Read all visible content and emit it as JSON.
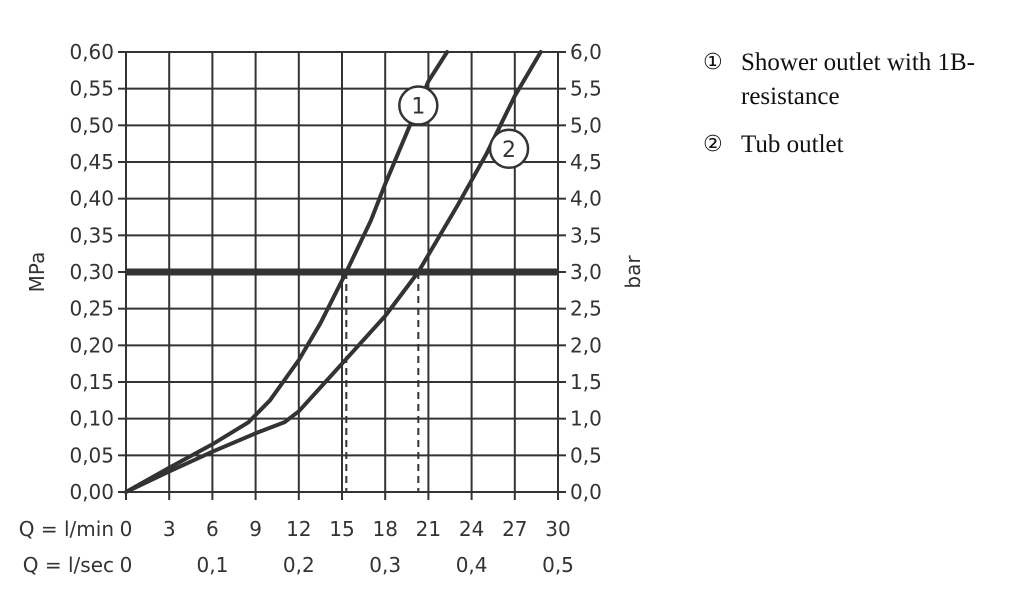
{
  "chart_data": {
    "type": "line",
    "title": "",
    "ylabel_left": "MPa",
    "ylabel_right": "bar",
    "xlabel_rows": [
      {
        "prefix": "Q = l/min",
        "ticks": [
          {
            "value": 0,
            "label": "0"
          },
          {
            "value": 3,
            "label": "3"
          },
          {
            "value": 6,
            "label": "6"
          },
          {
            "value": 9,
            "label": "9"
          },
          {
            "value": 12,
            "label": "12"
          },
          {
            "value": 15,
            "label": "15"
          },
          {
            "value": 18,
            "label": "18"
          },
          {
            "value": 21,
            "label": "21"
          },
          {
            "value": 24,
            "label": "24"
          },
          {
            "value": 27,
            "label": "27"
          },
          {
            "value": 30,
            "label": "30"
          }
        ]
      },
      {
        "prefix": "Q = l/sec",
        "ticks": [
          {
            "value": 0,
            "label": "0"
          },
          {
            "value": 6,
            "label": "0,1"
          },
          {
            "value": 12,
            "label": "0,2"
          },
          {
            "value": 18,
            "label": "0,3"
          },
          {
            "value": 24,
            "label": "0,4"
          },
          {
            "value": 30,
            "label": "0,5"
          }
        ]
      }
    ],
    "xlim": [
      0,
      30
    ],
    "ylim": [
      0,
      0.6
    ],
    "yticks_left": [
      "0,00",
      "0,05",
      "0,10",
      "0,15",
      "0,20",
      "0,25",
      "0,30",
      "0,35",
      "0,40",
      "0,45",
      "0,50",
      "0,55",
      "0,60"
    ],
    "yticks_right": [
      "0,0",
      "0,5",
      "1,0",
      "1,5",
      "2,0",
      "2,5",
      "3,0",
      "3,5",
      "4,0",
      "4,5",
      "5,0",
      "5,5",
      "6,0"
    ],
    "grid": true,
    "x_grid_step": 3,
    "reference_line": {
      "y": 0.3
    },
    "drop_lines": [
      {
        "x": 15.3,
        "y": 0.3
      },
      {
        "x": 20.3,
        "y": 0.3
      }
    ],
    "series": [
      {
        "name": "1",
        "label": "1",
        "label_at": {
          "x": 20.3,
          "y": 0.527
        },
        "points": [
          {
            "x": 0,
            "y": 0
          },
          {
            "x": 3,
            "y": 0.033
          },
          {
            "x": 6,
            "y": 0.065
          },
          {
            "x": 8.5,
            "y": 0.095
          },
          {
            "x": 10,
            "y": 0.125
          },
          {
            "x": 12,
            "y": 0.18
          },
          {
            "x": 13.5,
            "y": 0.23
          },
          {
            "x": 15.3,
            "y": 0.3
          },
          {
            "x": 17,
            "y": 0.37
          },
          {
            "x": 18,
            "y": 0.42
          },
          {
            "x": 19.5,
            "y": 0.49
          },
          {
            "x": 21,
            "y": 0.56
          },
          {
            "x": 22.3,
            "y": 0.6
          }
        ]
      },
      {
        "name": "2",
        "label": "2",
        "label_at": {
          "x": 26.6,
          "y": 0.468
        },
        "points": [
          {
            "x": 0,
            "y": 0
          },
          {
            "x": 3,
            "y": 0.028
          },
          {
            "x": 6,
            "y": 0.055
          },
          {
            "x": 9,
            "y": 0.08
          },
          {
            "x": 11,
            "y": 0.095
          },
          {
            "x": 12,
            "y": 0.11
          },
          {
            "x": 15,
            "y": 0.175
          },
          {
            "x": 18,
            "y": 0.24
          },
          {
            "x": 20.3,
            "y": 0.3
          },
          {
            "x": 23,
            "y": 0.39
          },
          {
            "x": 25,
            "y": 0.46
          },
          {
            "x": 27,
            "y": 0.54
          },
          {
            "x": 28.8,
            "y": 0.6
          }
        ]
      }
    ]
  },
  "legend": {
    "items": [
      {
        "marker": "①",
        "text": "Shower outlet with 1B-resistance"
      },
      {
        "marker": "②",
        "text": "Tub outlet"
      }
    ]
  },
  "colors": {
    "ink": "#333333"
  }
}
